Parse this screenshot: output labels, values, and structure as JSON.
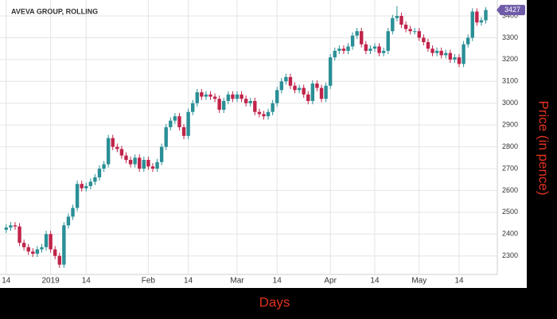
{
  "chart_data": {
    "type": "candlestick",
    "title": "AVEVA GROUP, ROLLING",
    "x_label": "Days",
    "y_label": "Price (in pence)",
    "up_color": "#2a8f96",
    "down_color": "#c0234a",
    "badge_color": "#6f5ba8",
    "ylim": [
      2215,
      3473
    ],
    "yticks": [
      2300,
      2400,
      2500,
      2600,
      2700,
      2800,
      2900,
      3000,
      3100,
      3200,
      3300,
      3400
    ],
    "xlim": [
      -1.4,
      110.6
    ],
    "xticks": [
      {
        "value": 0,
        "label": "14"
      },
      {
        "value": 10,
        "label": "2019"
      },
      {
        "value": 18,
        "label": "14"
      },
      {
        "value": 32,
        "label": "Feb"
      },
      {
        "value": 41,
        "label": "14"
      },
      {
        "value": 52,
        "label": "Mar"
      },
      {
        "value": 61,
        "label": "14"
      },
      {
        "value": 73,
        "label": "Apr"
      },
      {
        "value": 83,
        "label": "14"
      },
      {
        "value": 93,
        "label": "May"
      },
      {
        "value": 102,
        "label": "14"
      }
    ],
    "grid": true,
    "open": [
      2420,
      2430,
      2440,
      2435,
      2360,
      2340,
      2320,
      2310,
      2330,
      2340,
      2400,
      2330,
      2300,
      2260,
      2440,
      2480,
      2520,
      2630,
      2610,
      2620,
      2640,
      2660,
      2700,
      2720,
      2840,
      2800,
      2790,
      2760,
      2740,
      2720,
      2750,
      2700,
      2740,
      2710,
      2700,
      2730,
      2800,
      2890,
      2920,
      2940,
      2890,
      2850,
      2960,
      3000,
      3050,
      3030,
      3040,
      3030,
      3020,
      2970,
      3010,
      3040,
      3020,
      3040,
      3020,
      3000,
      3010,
      2960,
      2950,
      2940,
      2960,
      3000,
      3060,
      3100,
      3120,
      3080,
      3060,
      3070,
      3040,
      3010,
      3090,
      3070,
      3020,
      3080,
      3210,
      3240,
      3250,
      3240,
      3260,
      3310,
      3330,
      3270,
      3240,
      3250,
      3260,
      3230,
      3240,
      3330,
      3390,
      3400,
      3360,
      3340,
      3330,
      3330,
      3300,
      3280,
      3250,
      3230,
      3240,
      3220,
      3230,
      3200,
      3210,
      3180,
      3270,
      3300,
      3420,
      3370,
      3380
    ],
    "high": [
      2445,
      2455,
      2455,
      2450,
      2375,
      2355,
      2335,
      2345,
      2355,
      2415,
      2415,
      2345,
      2315,
      2455,
      2495,
      2535,
      2645,
      2645,
      2635,
      2655,
      2675,
      2715,
      2735,
      2855,
      2855,
      2815,
      2805,
      2775,
      2755,
      2765,
      2765,
      2755,
      2755,
      2725,
      2745,
      2815,
      2905,
      2935,
      2955,
      2955,
      2905,
      2975,
      3015,
      3065,
      3065,
      3055,
      3055,
      3045,
      3035,
      3025,
      3055,
      3055,
      3055,
      3055,
      3035,
      3025,
      3025,
      2975,
      2965,
      2975,
      3015,
      3075,
      3115,
      3135,
      3135,
      3095,
      3085,
      3085,
      3055,
      3105,
      3105,
      3085,
      3095,
      3225,
      3255,
      3265,
      3265,
      3275,
      3325,
      3345,
      3345,
      3285,
      3265,
      3275,
      3275,
      3255,
      3345,
      3405,
      3445,
      3415,
      3375,
      3355,
      3345,
      3345,
      3315,
      3295,
      3265,
      3255,
      3255,
      3245,
      3245,
      3225,
      3225,
      3285,
      3315,
      3435,
      3435,
      3395,
      3440
    ],
    "low": [
      2405,
      2415,
      2420,
      2345,
      2325,
      2305,
      2295,
      2295,
      2315,
      2325,
      2315,
      2285,
      2245,
      2245,
      2425,
      2465,
      2505,
      2595,
      2595,
      2605,
      2625,
      2645,
      2685,
      2705,
      2785,
      2775,
      2745,
      2725,
      2705,
      2705,
      2685,
      2685,
      2695,
      2685,
      2685,
      2715,
      2785,
      2875,
      2905,
      2875,
      2835,
      2835,
      2945,
      2985,
      3015,
      3015,
      3015,
      3005,
      2955,
      2955,
      2995,
      3005,
      3005,
      3005,
      2985,
      2985,
      2945,
      2935,
      2925,
      2925,
      2945,
      2985,
      3045,
      3085,
      3065,
      3045,
      3045,
      3025,
      2995,
      2995,
      3055,
      3005,
      3005,
      3065,
      3195,
      3225,
      3225,
      3225,
      3245,
      3295,
      3255,
      3225,
      3225,
      3235,
      3215,
      3215,
      3225,
      3315,
      3375,
      3345,
      3325,
      3315,
      3315,
      3285,
      3265,
      3235,
      3215,
      3215,
      3205,
      3205,
      3185,
      3185,
      3165,
      3165,
      3255,
      3285,
      3355,
      3355,
      3365
    ],
    "close": [
      2430,
      2440,
      2435,
      2360,
      2340,
      2320,
      2310,
      2330,
      2340,
      2400,
      2330,
      2300,
      2260,
      2440,
      2480,
      2520,
      2630,
      2610,
      2620,
      2640,
      2660,
      2700,
      2720,
      2840,
      2800,
      2790,
      2760,
      2740,
      2720,
      2750,
      2700,
      2740,
      2710,
      2700,
      2730,
      2800,
      2890,
      2920,
      2940,
      2890,
      2850,
      2960,
      3000,
      3050,
      3030,
      3040,
      3030,
      3020,
      2970,
      3010,
      3040,
      3020,
      3040,
      3020,
      3000,
      3010,
      2960,
      2950,
      2940,
      2960,
      3000,
      3060,
      3100,
      3120,
      3080,
      3060,
      3070,
      3040,
      3010,
      3090,
      3070,
      3020,
      3080,
      3210,
      3240,
      3250,
      3240,
      3260,
      3310,
      3330,
      3270,
      3240,
      3250,
      3260,
      3230,
      3240,
      3330,
      3390,
      3400,
      3360,
      3340,
      3330,
      3330,
      3300,
      3280,
      3250,
      3230,
      3240,
      3220,
      3230,
      3200,
      3210,
      3180,
      3270,
      3300,
      3420,
      3370,
      3380,
      3427
    ]
  }
}
